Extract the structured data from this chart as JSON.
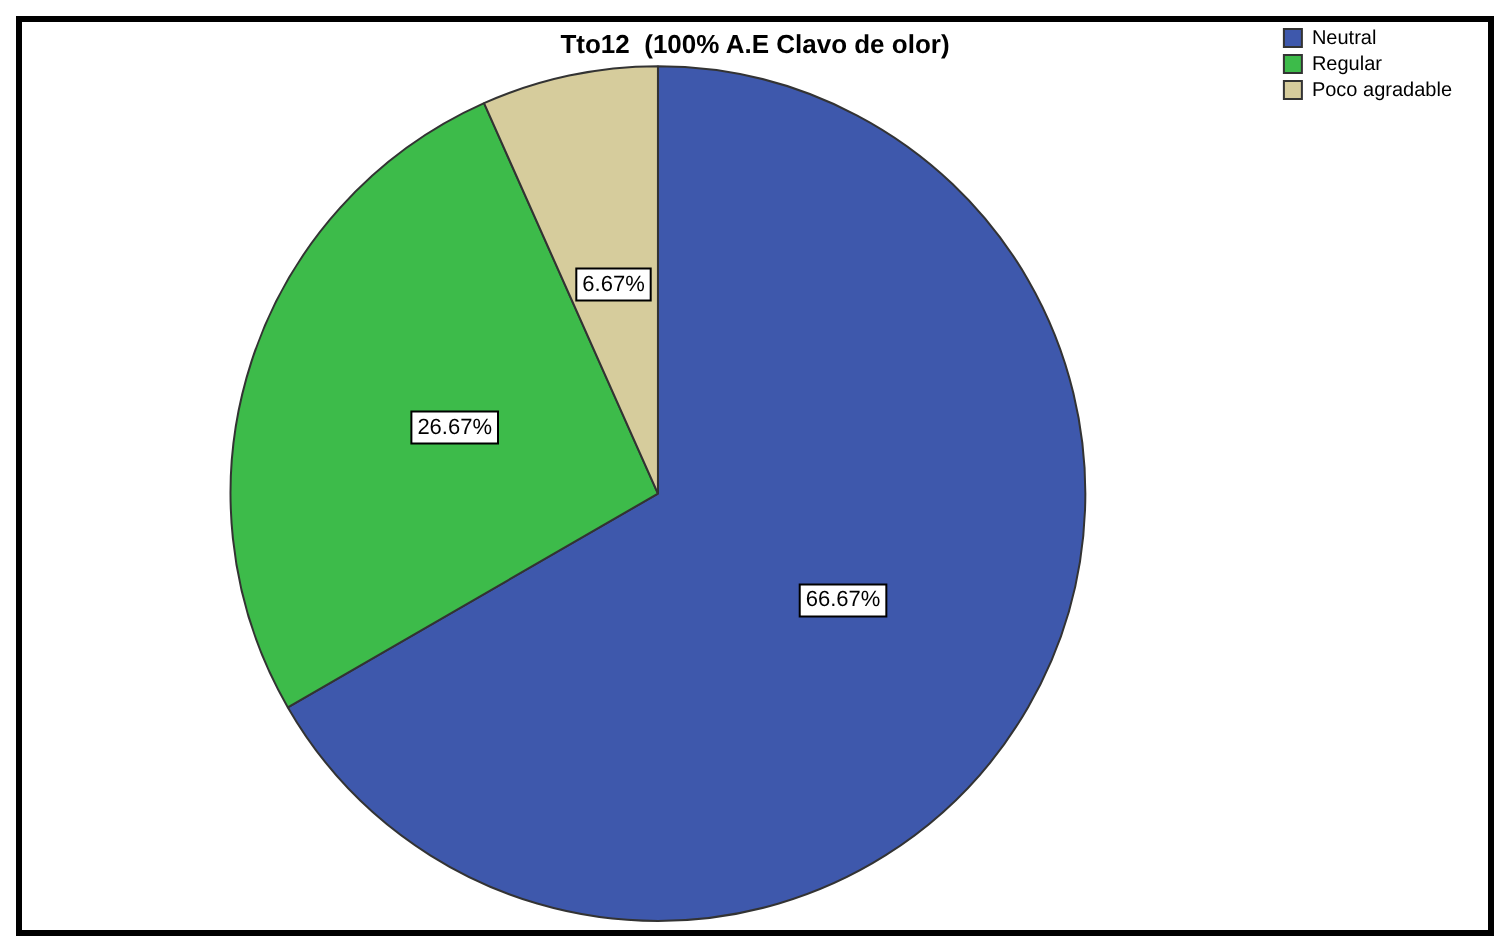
{
  "chart_data": {
    "type": "pie",
    "title": "Tto12  (100% A.E Clavo de olor)",
    "categories": [
      "Neutral",
      "Regular",
      "Poco agradable"
    ],
    "values": [
      66.67,
      26.67,
      6.67
    ],
    "colors": [
      "#3e58ac",
      "#3dbb4a",
      "#d6cc9c"
    ],
    "value_labels": [
      "66.67%",
      "26.67%",
      "6.67%"
    ],
    "legend": "top right"
  }
}
